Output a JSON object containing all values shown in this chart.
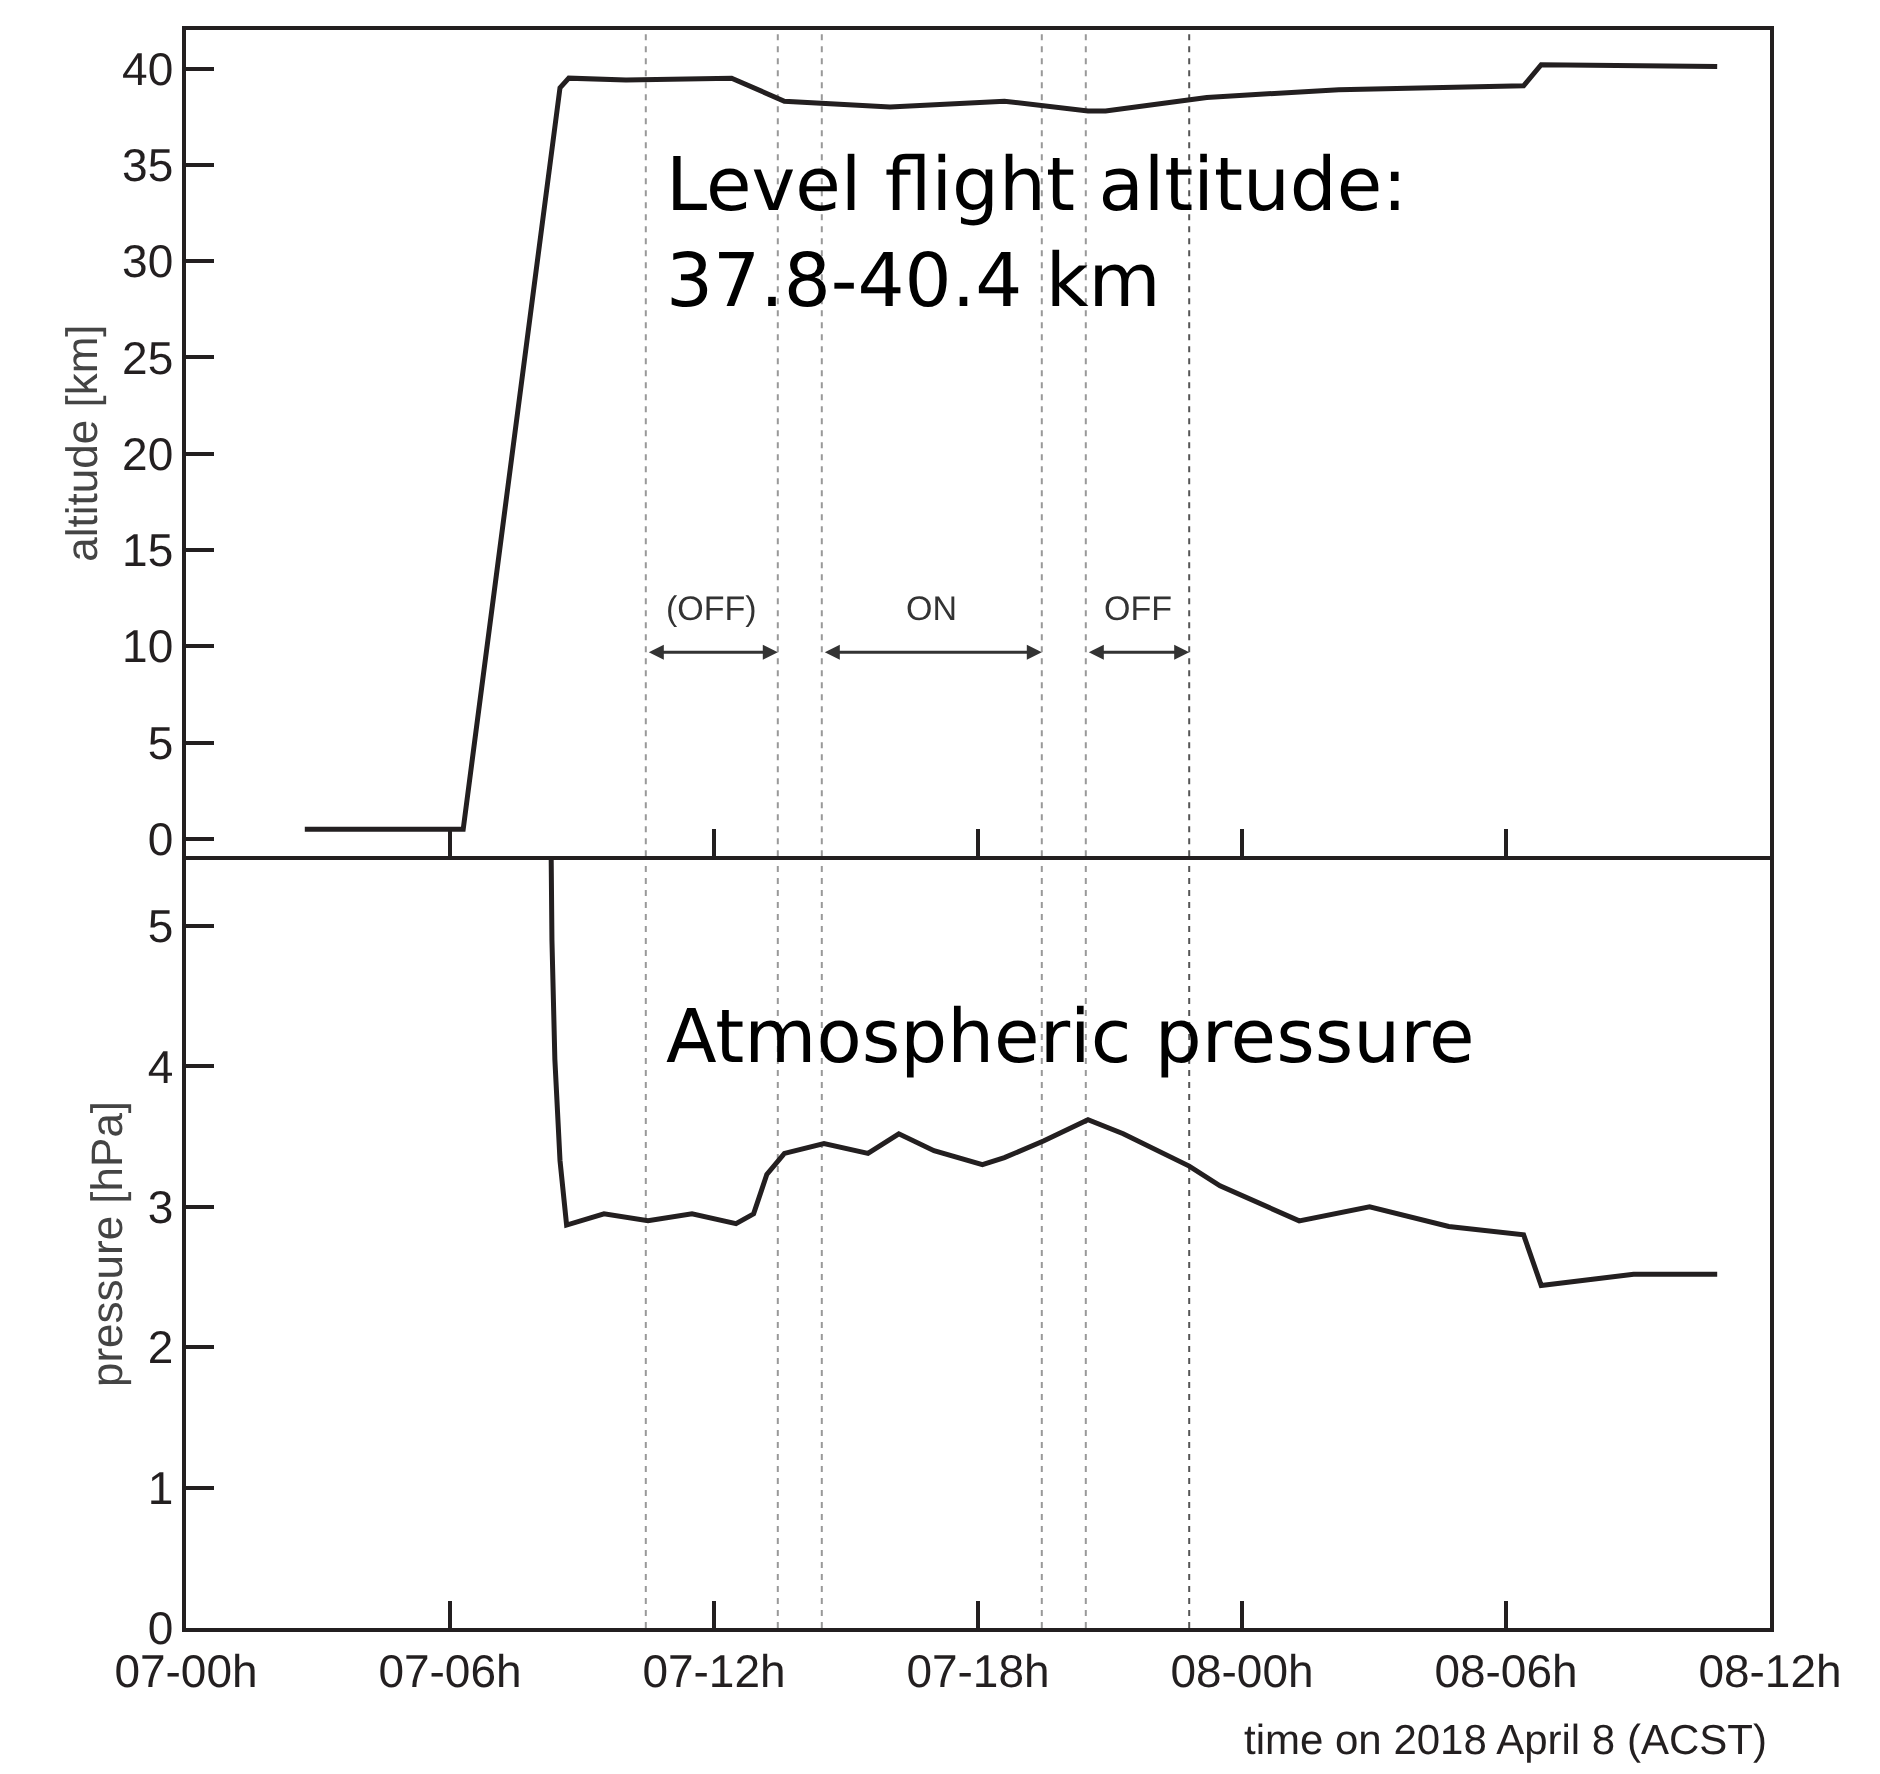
{
  "chart_data": [
    {
      "type": "line",
      "ylabel": "altitude [km]",
      "x": [
        "2018-04-07T02:42",
        "2018-04-07T06:18",
        "2018-04-07T08:30",
        "2018-04-07T08:42",
        "2018-04-07T10:00",
        "2018-04-07T12:24",
        "2018-04-07T13:36",
        "2018-04-07T16:00",
        "2018-04-07T18:36",
        "2018-04-07T20:30",
        "2018-04-07T20:54",
        "2018-04-07T23:12",
        "2018-04-08T02:12",
        "2018-04-08T06:24",
        "2018-04-08T06:48",
        "2018-04-08T10:48"
      ],
      "series": [
        {
          "color": "#231f20",
          "values": [
            0.5,
            0.5,
            39.0,
            39.5,
            39.4,
            39.5,
            38.3,
            38.0,
            38.3,
            37.8,
            37.8,
            38.5,
            38.9,
            39.1,
            40.2,
            40.1
          ]
        }
      ],
      "xlim": [
        "2018-04-07T00:00",
        "2018-04-08T12:00"
      ],
      "xticks": [
        {
          "value": "2018-04-07T00:00",
          "label": null
        },
        {
          "value": "2018-04-07T06:00",
          "label": null
        },
        {
          "value": "2018-04-07T12:00",
          "label": null
        },
        {
          "value": "2018-04-07T18:00",
          "label": null
        },
        {
          "value": "2018-04-08T00:00",
          "label": null
        },
        {
          "value": "2018-04-08T06:00",
          "label": null
        },
        {
          "value": "2018-04-08T12:00",
          "label": null
        }
      ],
      "ylim": [
        -0.9,
        42
      ],
      "yticks": [
        0,
        5,
        10,
        15,
        20,
        25,
        30,
        35,
        40
      ],
      "tick_labels": "y",
      "grid": false,
      "marker": "none",
      "line_style": "solid",
      "ref_lines": [
        {
          "axis": "x",
          "value": "2018-04-07T10:27",
          "color": "#999999",
          "line_style": "dotted"
        },
        {
          "axis": "x",
          "value": "2018-04-07T13:27",
          "color": "#999999",
          "line_style": "dotted"
        },
        {
          "axis": "x",
          "value": "2018-04-07T14:27",
          "color": "#999999",
          "line_style": "dotted"
        },
        {
          "axis": "x",
          "value": "2018-04-07T19:27",
          "color": "#999999",
          "line_style": "dotted"
        },
        {
          "axis": "x",
          "value": "2018-04-07T20:27",
          "color": "#999999",
          "line_style": "dotted"
        },
        {
          "axis": "x",
          "value": "2018-04-07T22:48",
          "color": "#555555",
          "line_style": "dotted"
        }
      ],
      "annotations": [
        "Level flight altitude:\n37.8-40.4 km",
        "(OFF)",
        "ON",
        "OFF"
      ]
    },
    {
      "type": "line",
      "ylabel": "pressure [hPa]",
      "xlabel": "time on 2018 April 8 (ACST)",
      "x": [
        "2018-04-07T08:18",
        "2018-04-07T08:19",
        "2018-04-07T08:23",
        "2018-04-07T08:30",
        "2018-04-07T08:39",
        "2018-04-07T09:30",
        "2018-04-07T10:30",
        "2018-04-07T11:30",
        "2018-04-07T12:30",
        "2018-04-07T12:54",
        "2018-04-07T13:12",
        "2018-04-07T13:36",
        "2018-04-07T14:30",
        "2018-04-07T15:30",
        "2018-04-07T16:12",
        "2018-04-07T17:00",
        "2018-04-07T18:06",
        "2018-04-07T18:36",
        "2018-04-07T19:30",
        "2018-04-07T20:30",
        "2018-04-07T21:18",
        "2018-04-07T22:48",
        "2018-04-07T23:30",
        "2018-04-08T01:18",
        "2018-04-08T02:54",
        "2018-04-08T04:42",
        "2018-04-08T06:24",
        "2018-04-08T06:48",
        "2018-04-08T08:54",
        "2018-04-08T10:48"
      ],
      "series": [
        {
          "color": "#231f20",
          "values": [
            5.47,
            4.9,
            4.05,
            3.33,
            2.87,
            2.95,
            2.9,
            2.95,
            2.88,
            2.95,
            3.23,
            3.38,
            3.45,
            3.38,
            3.52,
            3.4,
            3.3,
            3.35,
            3.47,
            3.62,
            3.52,
            3.29,
            3.15,
            2.9,
            3.0,
            2.86,
            2.8,
            2.44,
            2.52,
            2.52
          ]
        }
      ],
      "xlim": [
        "2018-04-07T00:00",
        "2018-04-08T12:00"
      ],
      "xticks": [
        {
          "value": "2018-04-07T00:00",
          "label": "07-00h"
        },
        {
          "value": "2018-04-07T06:00",
          "label": "07-06h"
        },
        {
          "value": "2018-04-07T12:00",
          "label": "07-12h"
        },
        {
          "value": "2018-04-07T18:00",
          "label": "07-18h"
        },
        {
          "value": "2018-04-08T00:00",
          "label": "08-00h"
        },
        {
          "value": "2018-04-08T06:00",
          "label": "08-06h"
        },
        {
          "value": "2018-04-08T12:00",
          "label": "08-12h"
        }
      ],
      "ylim": [
        0,
        5.47
      ],
      "yticks": [
        0,
        1,
        2,
        3,
        4,
        5
      ],
      "grid": false,
      "marker": "none",
      "line_style": "solid",
      "ref_lines": [
        {
          "axis": "x",
          "value": "2018-04-07T10:27",
          "color": "#999999",
          "line_style": "dotted"
        },
        {
          "axis": "x",
          "value": "2018-04-07T13:27",
          "color": "#999999",
          "line_style": "dotted"
        },
        {
          "axis": "x",
          "value": "2018-04-07T14:27",
          "color": "#999999",
          "line_style": "dotted"
        },
        {
          "axis": "x",
          "value": "2018-04-07T19:27",
          "color": "#999999",
          "line_style": "dotted"
        },
        {
          "axis": "x",
          "value": "2018-04-07T20:27",
          "color": "#999999",
          "line_style": "dotted"
        },
        {
          "axis": "x",
          "value": "2018-04-07T22:48",
          "color": "#555555",
          "line_style": "dotted"
        }
      ],
      "annotations": [
        "Atmospheric pressure"
      ]
    }
  ]
}
